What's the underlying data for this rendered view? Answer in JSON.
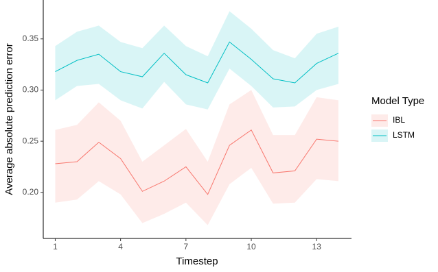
{
  "chart_data": {
    "type": "line",
    "x_label": "Timestep",
    "y_label": "Average absolute prediction error",
    "x": [
      1,
      2,
      3,
      4,
      5,
      6,
      7,
      8,
      9,
      10,
      11,
      12,
      13,
      14
    ],
    "series": [
      {
        "name": "IBL",
        "color": "#F8766D",
        "values": [
          0.228,
          0.23,
          0.249,
          0.233,
          0.201,
          0.211,
          0.225,
          0.198,
          0.246,
          0.261,
          0.219,
          0.221,
          0.252,
          0.25
        ],
        "upper": [
          0.261,
          0.266,
          0.288,
          0.27,
          0.23,
          0.246,
          0.262,
          0.23,
          0.286,
          0.3,
          0.256,
          0.256,
          0.293,
          0.29
        ],
        "lower": [
          0.19,
          0.193,
          0.211,
          0.198,
          0.17,
          0.179,
          0.19,
          0.168,
          0.208,
          0.224,
          0.189,
          0.19,
          0.213,
          0.211
        ]
      },
      {
        "name": "LSTM",
        "color": "#00BFC4",
        "values": [
          0.318,
          0.329,
          0.335,
          0.318,
          0.313,
          0.336,
          0.315,
          0.307,
          0.347,
          0.33,
          0.311,
          0.307,
          0.326,
          0.336
        ],
        "upper": [
          0.343,
          0.357,
          0.363,
          0.347,
          0.341,
          0.363,
          0.343,
          0.333,
          0.377,
          0.36,
          0.339,
          0.331,
          0.355,
          0.362
        ],
        "lower": [
          0.29,
          0.304,
          0.306,
          0.29,
          0.282,
          0.308,
          0.286,
          0.281,
          0.321,
          0.304,
          0.283,
          0.284,
          0.3,
          0.306
        ]
      }
    ],
    "xlim": [
      0.45,
      14.6
    ],
    "ylim": [
      0.155,
      0.388
    ],
    "xticks": [
      1,
      4,
      7,
      10,
      13
    ],
    "yticks": [
      {
        "value": 0.2,
        "label": "0.20"
      },
      0.25,
      {
        "value": 0.3,
        "label": "0.30"
      },
      0.35
    ],
    "legend_title": "Model Type",
    "legend_position": "right",
    "ribbon_opacity": 0.15
  }
}
